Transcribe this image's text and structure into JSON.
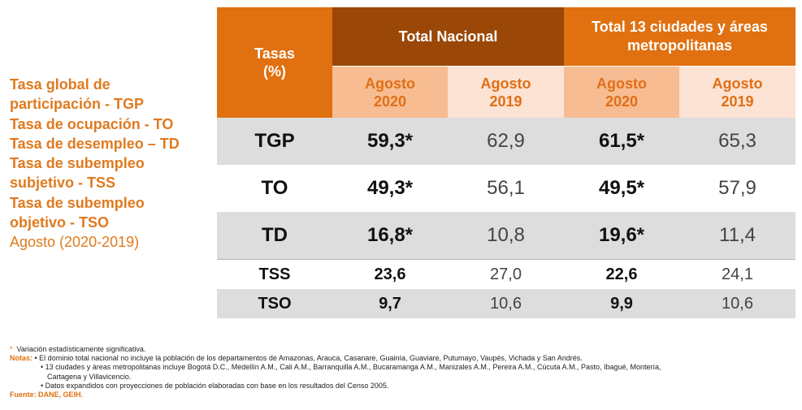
{
  "side_legend": {
    "lines": [
      {
        "text": "Tasa global de",
        "weight": "bold"
      },
      {
        "text": "participación - TGP",
        "weight": "bold"
      },
      {
        "text": "Tasa de ocupación - TO",
        "weight": "bold"
      },
      {
        "text": "Tasa de desempleo – TD",
        "weight": "bold"
      },
      {
        "text": "Tasa de subempleo",
        "weight": "bold"
      },
      {
        "text": "subjetivo - TSS",
        "weight": "bold"
      },
      {
        "text": "Tasa de subempleo",
        "weight": "bold"
      },
      {
        "text": "objetivo - TSO",
        "weight": "bold"
      },
      {
        "text": "Agosto (2020-2019)",
        "weight": "normal"
      }
    ]
  },
  "table": {
    "header": {
      "tasas_line1": "Tasas",
      "tasas_line2": "(%)",
      "group1": "Total Nacional",
      "group2_line1": "Total 13 ciudades y áreas",
      "group2_line2": "metropolitanas"
    },
    "subheaders": [
      {
        "line1": "Agosto",
        "line2": "2020"
      },
      {
        "line1": "Agosto",
        "line2": "2019"
      },
      {
        "line1": "Agosto",
        "line2": "2020"
      },
      {
        "line1": "Agosto",
        "line2": "2019"
      }
    ],
    "rows": [
      {
        "label": "TGP",
        "nac_2020": "59,3*",
        "nac_2019": "62,9",
        "c13_2020": "61,5*",
        "c13_2019": "65,3"
      },
      {
        "label": "TO",
        "nac_2020": "49,3*",
        "nac_2019": "56,1",
        "c13_2020": "49,5*",
        "c13_2019": "57,9"
      },
      {
        "label": "TD",
        "nac_2020": "16,8*",
        "nac_2019": "10,8",
        "c13_2020": "19,6*",
        "c13_2019": "11,4"
      },
      {
        "label": "TSS",
        "nac_2020": "23,6",
        "nac_2019": "27,0",
        "c13_2020": "22,6",
        "c13_2019": "24,1"
      },
      {
        "label": "TSO",
        "nac_2020": "9,7",
        "nac_2019": "10,6",
        "c13_2020": "9,9",
        "c13_2019": "10,6"
      }
    ]
  },
  "footer": {
    "star": "*",
    "star_text": "Variación estadísticamente significativa.",
    "notes_label": "Notas:",
    "note1": "• El dominio total nacional no incluye la población de los departamentos de Amazonas, Arauca, Casanare, Guainía, Guaviare, Putumayo, Vaupés, Vichada y San Andrés.",
    "note2": "• 13 ciudades y áreas metropolitanas incluye Bogotá D.C., Medellín A.M., Cali A.M., Barranquilla A.M., Bucaramanga A.M., Manizales A.M., Pereira A.M., Cúcuta A.M., Pasto, Ibagué, Montería,",
    "note2_cont": "Cartagena y Villavicencio.",
    "note3": "• Datos expandidos con proyecciones de población elaboradas con base en los resultados del Censo 2005.",
    "source": "Fuente: DANE, GEIH."
  }
}
